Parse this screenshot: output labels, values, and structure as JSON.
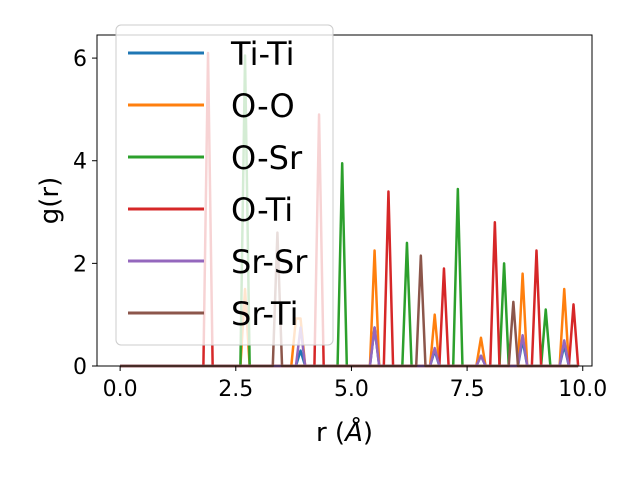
{
  "chart_data": {
    "type": "line",
    "xlabel_main": "r (",
    "xlabel_unit": "Å",
    "xlabel_end": ")",
    "ylabel": "g(r)",
    "xlim": [
      -0.5,
      10.2
    ],
    "ylim": [
      0,
      6.45
    ],
    "xticks": [
      0.0,
      2.5,
      5.0,
      7.5,
      10.0
    ],
    "xtick_labels": [
      "0.0",
      "2.5",
      "5.0",
      "7.5",
      "10.0"
    ],
    "yticks": [
      0,
      2,
      4,
      6
    ],
    "ytick_labels": [
      "0",
      "2",
      "4",
      "6"
    ],
    "x_range": [
      0.0,
      9.9
    ],
    "grid": false,
    "legend_position": "upper-left",
    "series": [
      {
        "name": "Ti-Ti",
        "color": "#1f77b4",
        "peaks": [
          [
            3.9,
            0.3
          ],
          [
            5.5,
            0.75
          ],
          [
            6.8,
            0.3
          ],
          [
            7.8,
            0.2
          ],
          [
            8.7,
            0.5
          ],
          [
            9.6,
            0.4
          ]
        ]
      },
      {
        "name": "O-O",
        "color": "#ff7f0e",
        "peaks": [
          [
            2.7,
            1.5
          ],
          [
            3.85,
            1.85
          ],
          [
            5.5,
            2.25
          ],
          [
            6.8,
            1.0
          ],
          [
            7.8,
            0.55
          ],
          [
            8.7,
            1.8
          ],
          [
            9.6,
            1.5
          ]
        ]
      },
      {
        "name": "O-Sr",
        "color": "#2ca02c",
        "peaks": [
          [
            2.7,
            6.05
          ],
          [
            4.8,
            3.95
          ],
          [
            6.2,
            2.4
          ],
          [
            7.3,
            3.45
          ],
          [
            8.3,
            2.0
          ],
          [
            9.2,
            1.1
          ]
        ]
      },
      {
        "name": "O-Ti",
        "color": "#d62728",
        "peaks": [
          [
            1.9,
            6.1
          ],
          [
            4.3,
            4.9
          ],
          [
            5.8,
            3.4
          ],
          [
            7.0,
            1.9
          ],
          [
            8.1,
            2.8
          ],
          [
            9.0,
            2.25
          ],
          [
            9.8,
            1.2
          ]
        ]
      },
      {
        "name": "Sr-Sr",
        "color": "#9467bd",
        "peaks": [
          [
            3.9,
            0.75
          ],
          [
            5.5,
            0.75
          ],
          [
            6.8,
            0.35
          ],
          [
            7.8,
            0.2
          ],
          [
            8.7,
            0.6
          ],
          [
            9.6,
            0.5
          ]
        ]
      },
      {
        "name": "Sr-Ti",
        "color": "#8c564b",
        "peaks": [
          [
            3.4,
            2.6
          ],
          [
            6.5,
            2.15
          ],
          [
            8.5,
            1.25
          ]
        ]
      }
    ]
  }
}
